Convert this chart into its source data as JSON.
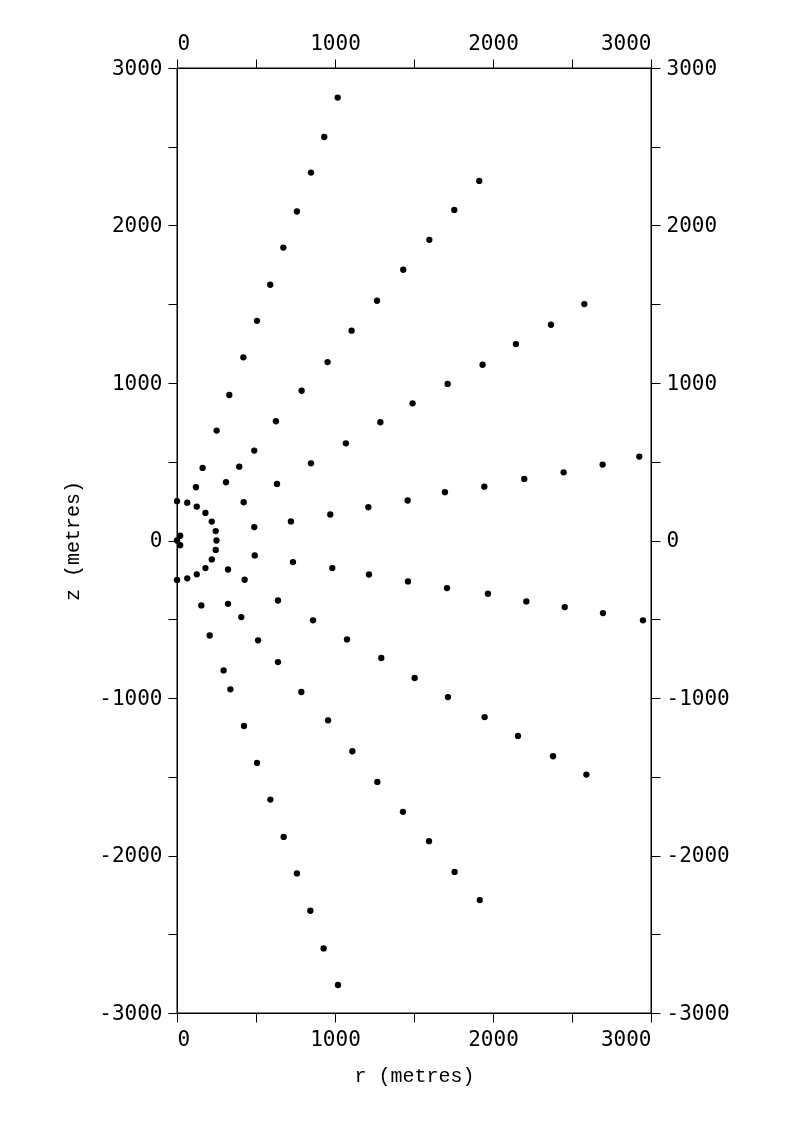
{
  "chart_data": {
    "type": "scatter",
    "xlabel": "r (metres)",
    "ylabel": "z (metres)",
    "marker": "circle",
    "grid": false,
    "xlim": [
      0,
      3000
    ],
    "xticks": [
      0,
      {
        "value": 500,
        "label": null
      },
      1000,
      {
        "value": 1500,
        "label": null
      },
      2000,
      {
        "value": 2500,
        "label": null
      },
      3000
    ],
    "x2lim": [
      0,
      3000
    ],
    "x2ticks": [
      0,
      {
        "value": 500,
        "label": null
      },
      1000,
      {
        "value": 1500,
        "label": null
      },
      2000,
      {
        "value": 2500,
        "label": null
      },
      3000
    ],
    "ylim": [
      -3000,
      3000
    ],
    "yticks": [
      -3000,
      {
        "value": -2500,
        "label": null
      },
      -2000,
      {
        "value": -1500,
        "label": null
      },
      -1000,
      {
        "value": -500,
        "label": null
      },
      0,
      {
        "value": 500,
        "label": null
      },
      1000,
      {
        "value": 1500,
        "label": null
      },
      2000,
      {
        "value": 2500,
        "label": null
      },
      3000
    ],
    "y2lim": [
      -3000,
      3000
    ],
    "y2ticks": [
      -3000,
      {
        "value": -2500,
        "label": null
      },
      -2000,
      {
        "value": -1500,
        "label": null
      },
      -1000,
      {
        "value": -500,
        "label": null
      },
      0,
      {
        "value": 500,
        "label": null
      },
      1000,
      {
        "value": 1500,
        "label": null
      },
      2000,
      {
        "value": 2500,
        "label": null
      },
      3000
    ],
    "series": [
      {
        "color": "#000000",
        "x": [
          1017,
          932,
          848,
          759,
          673,
          590,
          506,
          420,
          331,
          251,
          162,
          120,
          1913,
          1755,
          1597,
          1432,
          1266,
          1105,
          953,
          789,
          626,
          489,
          394,
          310,
          2578,
          2367,
          2145,
          1934,
          1713,
          1491,
          1287,
          1069,
          848,
          633,
          422,
          2926,
          2694,
          2447,
          2198,
          1945,
          1696,
          1460,
          1211,
          970,
          721,
          489,
          2949,
          2696,
          2454,
          2211,
          1968,
          1709,
          1462,
          1215,
          983,
          734,
          492,
          2591,
          2380,
          2158,
          1947,
          1715,
          1504,
          1293,
          1076,
          861,
          639,
          428,
          323,
          1916,
          1757,
          1595,
          1430,
          1268,
          1110,
          956,
          787,
          639,
          513,
          407,
          323,
          1019,
          928,
          844,
          759,
          675,
          591,
          506,
          424,
          338,
          295,
          207,
          154,
          0,
          65,
          125,
          180,
          220,
          245,
          250,
          245,
          220,
          180,
          125,
          65,
          0,
          0,
          20,
          20
        ],
        "values": [
          2812,
          2562,
          2336,
          2089,
          1860,
          1624,
          1395,
          1163,
          924,
          698,
          461,
          338,
          2283,
          2099,
          1909,
          1719,
          1522,
          1332,
          1133,
          951,
          757,
          571,
          469,
          370,
          1501,
          1370,
          1247,
          1116,
          994,
          871,
          751,
          617,
          490,
          359,
          243,
          533,
          482,
          433,
          391,
          342,
          307,
          254,
          211,
          165,
          121,
          85,
          -507,
          -461,
          -423,
          -387,
          -338,
          -302,
          -260,
          -216,
          -175,
          -137,
          -95,
          -1486,
          -1370,
          -1241,
          -1121,
          -994,
          -873,
          -746,
          -628,
          -507,
          -381,
          -249,
          -184,
          -2283,
          -2104,
          -1909,
          -1723,
          -1533,
          -1338,
          -1142,
          -962,
          -772,
          -634,
          -486,
          -402,
          -2822,
          -2590,
          -2351,
          -2114,
          -1882,
          -1645,
          -1412,
          -1178,
          -945,
          -825,
          -603,
          -412,
          250,
          240,
          215,
          175,
          120,
          60,
          0,
          -60,
          -120,
          -175,
          -215,
          -240,
          -250,
          0,
          30,
          -30
        ]
      }
    ]
  }
}
